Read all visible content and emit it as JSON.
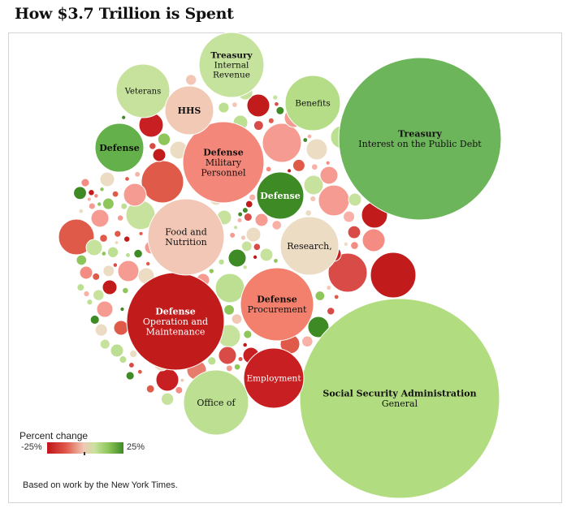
{
  "title": "How $3.7 Trillion is Spent",
  "legend": {
    "title": "Percent change",
    "min_label": "-25%",
    "max_label": "25%"
  },
  "footnote": "Based on work by the New York Times.",
  "colors": {
    "red": "#c0141b",
    "green": "#3e8a24",
    "neutral": "#ecd9c2"
  },
  "chart_data": {
    "type": "bubble",
    "encoding": {
      "size": "spending",
      "color": "percent change"
    },
    "color_range": [
      -25,
      25
    ],
    "labeled_bubbles": [
      {
        "id": "ssa",
        "agency": "Social Security Administration",
        "account": "General",
        "color": "#b2dc80"
      },
      {
        "id": "treasury-debt",
        "agency": "Treasury",
        "account": "Interest on the Public Debt",
        "color": "#6db55a"
      },
      {
        "id": "defense-om",
        "agency": "Defense",
        "account_lines": [
          "Operation and",
          "Maintenance"
        ],
        "color": "#c21b1b"
      },
      {
        "id": "defense-personnel",
        "agency": "Defense",
        "account_lines": [
          "Military",
          "Personnel"
        ],
        "color": "#f3877a"
      },
      {
        "id": "defense-procurement",
        "agency": "Defense",
        "account": "Procurement",
        "color": "#f2806c"
      },
      {
        "id": "food",
        "account_lines": [
          "Food and",
          "Nutrition"
        ],
        "color": "#f2c7b5"
      },
      {
        "id": "research",
        "account": "Research,",
        "color": "#ecdcc4"
      },
      {
        "id": "employment",
        "account": "Employment",
        "color": "#c82022"
      },
      {
        "id": "office",
        "account": "Office of",
        "color": "#bcdf92"
      },
      {
        "id": "treasury-irs",
        "agency": "Treasury",
        "account_lines": [
          "Internal",
          "Revenue"
        ],
        "color": "#c6e39e"
      },
      {
        "id": "benefits",
        "account": "Benefits",
        "color": "#b5dc86"
      },
      {
        "id": "veterans",
        "account": "Veterans",
        "color": "#c6e29c"
      },
      {
        "id": "hhs",
        "agency": "HHS",
        "color": "#f1c9b5"
      },
      {
        "id": "defense-small",
        "agency": "Defense",
        "color": "#64b04a"
      },
      {
        "id": "defense-green",
        "agency": "Defense",
        "color": "#3e8a24"
      }
    ]
  }
}
